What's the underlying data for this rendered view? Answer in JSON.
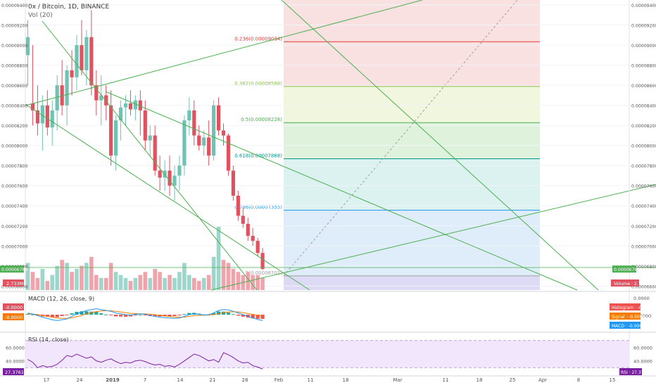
{
  "header": {
    "symbol_line": "0x / Bitcoin, 1D, BINANCE",
    "vol_label": "Vol (20)"
  },
  "colors": {
    "up": "#6fc3b3",
    "down": "#e05260",
    "up_vol": "#9fd6cc",
    "down_vol": "#f0a3aa",
    "trendline": "#4caf50",
    "grid": "#f0f3fa",
    "macd": "#2196f3",
    "signal": "#f57c00",
    "rsi": "#7b1fa2",
    "rsi_band": "#efe3fb",
    "price_tag": "#4caf50",
    "red_tag": "#e05260"
  },
  "chart_data": {
    "type": "candlestick",
    "y_axis_ticks": [
      "0.00009400",
      "0.00009200",
      "0.00009000",
      "0.00008800",
      "0.00008600",
      "0.00008400",
      "0.00008200",
      "0.00008000",
      "0.00007800",
      "0.00007600",
      "0.00007400",
      "0.00007200",
      "0.00007000",
      "0.00006800",
      "0.00006600"
    ],
    "ylim": [
      6.56e-05,
      9.45e-05
    ],
    "x_axis_labels": [
      "17",
      "24",
      "2019",
      "7",
      "14",
      "21",
      "28",
      "Feb",
      "11",
      "18",
      "Mar",
      "11",
      "18",
      "25",
      "Apr",
      "8",
      "15"
    ],
    "candles": [
      {
        "o": 8.9e-05,
        "h": 9.25e-05,
        "l": 8.6e-05,
        "c": 9.08e-05
      },
      {
        "o": 8.42e-05,
        "h": 9e-05,
        "l": 8.2e-05,
        "c": 8.35e-05
      },
      {
        "o": 8.35e-05,
        "h": 8.6e-05,
        "l": 8.1e-05,
        "c": 8.22e-05
      },
      {
        "o": 8.22e-05,
        "h": 8.5e-05,
        "l": 7.95e-05,
        "c": 8.4e-05
      },
      {
        "o": 8.4e-05,
        "h": 8.55e-05,
        "l": 8.1e-05,
        "c": 8.18e-05
      },
      {
        "o": 8.18e-05,
        "h": 8.45e-05,
        "l": 8e-05,
        "c": 8.35e-05
      },
      {
        "o": 8.35e-05,
        "h": 8.7e-05,
        "l": 8.15e-05,
        "c": 8.6e-05
      },
      {
        "o": 8.6e-05,
        "h": 8.85e-05,
        "l": 8.3e-05,
        "c": 8.4e-05
      },
      {
        "o": 8.4e-05,
        "h": 8.8e-05,
        "l": 8.2e-05,
        "c": 8.75e-05
      },
      {
        "o": 8.75e-05,
        "h": 8.95e-05,
        "l": 8.5e-05,
        "c": 8.68e-05
      },
      {
        "o": 8.68e-05,
        "h": 9.1e-05,
        "l": 8.55e-05,
        "c": 9e-05
      },
      {
        "o": 9e-05,
        "h": 9.25e-05,
        "l": 8.7e-05,
        "c": 8.75e-05
      },
      {
        "o": 8.75e-05,
        "h": 9.15e-05,
        "l": 8.6e-05,
        "c": 9.08e-05
      },
      {
        "o": 9.08e-05,
        "h": 9.35e-05,
        "l": 8.5e-05,
        "c": 8.6e-05
      },
      {
        "o": 8.6e-05,
        "h": 8.75e-05,
        "l": 8.3e-05,
        "c": 8.45e-05
      },
      {
        "o": 8.45e-05,
        "h": 8.7e-05,
        "l": 8.2e-05,
        "c": 8.5e-05
      },
      {
        "o": 8.5e-05,
        "h": 8.6e-05,
        "l": 8.25e-05,
        "c": 8.4e-05
      },
      {
        "o": 8.4e-05,
        "h": 8.55e-05,
        "l": 7.8e-05,
        "c": 7.9e-05
      },
      {
        "o": 7.9e-05,
        "h": 8.3e-05,
        "l": 7.75e-05,
        "c": 8.25e-05
      },
      {
        "o": 8.25e-05,
        "h": 8.45e-05,
        "l": 8.05e-05,
        "c": 8.38e-05
      },
      {
        "o": 8.38e-05,
        "h": 8.5e-05,
        "l": 8.2e-05,
        "c": 8.42e-05
      },
      {
        "o": 8.42e-05,
        "h": 8.55e-05,
        "l": 8.3e-05,
        "c": 8.36e-05
      },
      {
        "o": 8.36e-05,
        "h": 8.5e-05,
        "l": 8.25e-05,
        "c": 8.45e-05
      },
      {
        "o": 8.45e-05,
        "h": 8.55e-05,
        "l": 8.1e-05,
        "c": 8.35e-05
      },
      {
        "o": 8.35e-05,
        "h": 8.45e-05,
        "l": 7.95e-05,
        "c": 8.05e-05
      },
      {
        "o": 8.05e-05,
        "h": 8.2e-05,
        "l": 7.9e-05,
        "c": 8.1e-05
      },
      {
        "o": 8.1e-05,
        "h": 8.2e-05,
        "l": 7.7e-05,
        "c": 7.75e-05
      },
      {
        "o": 7.75e-05,
        "h": 7.9e-05,
        "l": 7.55e-05,
        "c": 7.68e-05
      },
      {
        "o": 7.68e-05,
        "h": 7.85e-05,
        "l": 7.55e-05,
        "c": 7.75e-05
      },
      {
        "o": 7.75e-05,
        "h": 7.9e-05,
        "l": 7.5e-05,
        "c": 7.6e-05
      },
      {
        "o": 7.6e-05,
        "h": 7.8e-05,
        "l": 7.45e-05,
        "c": 7.7e-05
      },
      {
        "o": 7.7e-05,
        "h": 7.9e-05,
        "l": 7.55e-05,
        "c": 7.8e-05
      },
      {
        "o": 7.8e-05,
        "h": 8.3e-05,
        "l": 7.7e-05,
        "c": 8.25e-05
      },
      {
        "o": 8.25e-05,
        "h": 8.48e-05,
        "l": 8.1e-05,
        "c": 8.35e-05
      },
      {
        "o": 8.35e-05,
        "h": 8.45e-05,
        "l": 8e-05,
        "c": 8.1e-05
      },
      {
        "o": 8.1e-05,
        "h": 8.2e-05,
        "l": 7.95e-05,
        "c": 8e-05
      },
      {
        "o": 8e-05,
        "h": 8.15e-05,
        "l": 7.9e-05,
        "c": 8.08e-05
      },
      {
        "o": 8.08e-05,
        "h": 8.25e-05,
        "l": 7.8e-05,
        "c": 7.9e-05
      },
      {
        "o": 7.9e-05,
        "h": 8.45e-05,
        "l": 7.85e-05,
        "c": 8.4e-05
      },
      {
        "o": 8.4e-05,
        "h": 8.48e-05,
        "l": 8.1e-05,
        "c": 8.15e-05
      },
      {
        "o": 8.15e-05,
        "h": 8.22e-05,
        "l": 8e-05,
        "c": 8.1e-05
      },
      {
        "o": 8.1e-05,
        "h": 8.12e-05,
        "l": 7.7e-05,
        "c": 7.75e-05
      },
      {
        "o": 7.75e-05,
        "h": 7.8e-05,
        "l": 7.45e-05,
        "c": 7.5e-05
      },
      {
        "o": 7.5e-05,
        "h": 7.55e-05,
        "l": 7.25e-05,
        "c": 7.3e-05
      },
      {
        "o": 7.3e-05,
        "h": 7.38e-05,
        "l": 7.18e-05,
        "c": 7.22e-05
      },
      {
        "o": 7.22e-05,
        "h": 7.28e-05,
        "l": 7.05e-05,
        "c": 7.1e-05
      },
      {
        "o": 7.1e-05,
        "h": 7.18e-05,
        "l": 7e-05,
        "c": 7.05e-05
      },
      {
        "o": 7.05e-05,
        "h": 7.08e-05,
        "l": 6.9e-05,
        "c": 6.93e-05
      },
      {
        "o": 6.93e-05,
        "h": 6.98e-05,
        "l": 6.76e-05,
        "c": 6.77e-05
      }
    ],
    "volume": [
      {
        "v": 0.9,
        "up": true
      },
      {
        "v": 0.6,
        "up": false
      },
      {
        "v": 0.4,
        "up": false
      },
      {
        "v": 0.7,
        "up": true
      },
      {
        "v": 0.3,
        "up": false
      },
      {
        "v": 0.5,
        "up": true
      },
      {
        "v": 0.8,
        "up": true
      },
      {
        "v": 1.0,
        "up": false
      },
      {
        "v": 0.9,
        "up": true
      },
      {
        "v": 0.6,
        "up": false
      },
      {
        "v": 0.7,
        "up": true
      },
      {
        "v": 0.8,
        "up": false
      },
      {
        "v": 0.9,
        "up": true
      },
      {
        "v": 1.1,
        "up": false
      },
      {
        "v": 0.5,
        "up": false
      },
      {
        "v": 0.4,
        "up": true
      },
      {
        "v": 0.4,
        "up": false
      },
      {
        "v": 0.9,
        "up": false
      },
      {
        "v": 0.6,
        "up": true
      },
      {
        "v": 0.5,
        "up": true
      },
      {
        "v": 0.4,
        "up": true
      },
      {
        "v": 0.3,
        "up": false
      },
      {
        "v": 0.4,
        "up": true
      },
      {
        "v": 0.5,
        "up": false
      },
      {
        "v": 0.6,
        "up": false
      },
      {
        "v": 0.4,
        "up": true
      },
      {
        "v": 0.7,
        "up": false
      },
      {
        "v": 0.6,
        "up": false
      },
      {
        "v": 0.4,
        "up": true
      },
      {
        "v": 0.5,
        "up": false
      },
      {
        "v": 0.4,
        "up": true
      },
      {
        "v": 0.6,
        "up": true
      },
      {
        "v": 0.9,
        "up": true
      },
      {
        "v": 0.5,
        "up": true
      },
      {
        "v": 0.4,
        "up": false
      },
      {
        "v": 0.3,
        "up": false
      },
      {
        "v": 0.4,
        "up": true
      },
      {
        "v": 0.5,
        "up": false
      },
      {
        "v": 1.1,
        "up": true
      },
      {
        "v": 2.1,
        "up": true
      },
      {
        "v": 1.0,
        "up": false
      },
      {
        "v": 0.9,
        "up": false
      },
      {
        "v": 0.7,
        "up": false
      },
      {
        "v": 0.6,
        "up": false
      },
      {
        "v": 0.5,
        "up": false
      },
      {
        "v": 0.6,
        "up": false
      },
      {
        "v": 0.5,
        "up": false
      },
      {
        "v": 0.5,
        "up": false
      },
      {
        "v": 0.4,
        "up": false
      }
    ],
    "fib_levels": [
      {
        "ratio": "0.236",
        "price": 9.034e-05,
        "label": "0.236(0.00009034)",
        "line": "#e53935",
        "fill": "#f7d9da"
      },
      {
        "ratio": "0.382",
        "price": 8.588e-05,
        "label": "0.382(0.00008588)",
        "line": "#8bc34a",
        "fill": "#eef5d6"
      },
      {
        "ratio": "0.5",
        "price": 8.228e-05,
        "label": "0.5(0.00008228)",
        "line": "#4caf50",
        "fill": "#d7f0d3"
      },
      {
        "ratio": "0.618",
        "price": 7.868e-05,
        "label": "0.618(0.00007868)",
        "line": "#009688",
        "fill": "#d3efec"
      },
      {
        "ratio": "0.786",
        "price": 7.355e-05,
        "label": "0.786(0.00007355)",
        "line": "#2196f3",
        "fill": "#d6e8f7"
      },
      {
        "ratio": "1",
        "price": 6.701e-05,
        "label": "1(0.00006701)",
        "line": "#9e9e9e",
        "fill": "#e6e6e6"
      }
    ],
    "fib_top_fill": "#f7d9da",
    "fib_below_fill": "#d9d6f5",
    "current_price_label": "0.00006769",
    "current_price": 6.769e-05,
    "volume_value": "2.733M",
    "macd": {
      "label": "MACD (12, 26, close, 9)",
      "ticks": [
        "0.0000",
        "-0.0000",
        "-0.0000"
      ],
      "legend": [
        {
          "name": "Histogram",
          "value": "-0.0000"
        },
        {
          "name": "Signal",
          "value": "-0.0000"
        },
        {
          "name": "MACD",
          "value": "-0.0000"
        }
      ],
      "left_tags": [
        "-0.0000",
        "-0.0000"
      ],
      "macd_line": [
        0.1,
        0.05,
        -0.05,
        -0.15,
        -0.22,
        -0.3,
        -0.35,
        -0.3,
        -0.25,
        -0.1,
        0.05,
        0.15,
        0.25,
        0.3,
        0.35,
        0.3,
        0.25,
        0.2,
        0.1,
        0.05,
        0.0,
        -0.02,
        0.02,
        0.05,
        0.03,
        -0.05,
        -0.1,
        -0.15,
        -0.18,
        -0.2,
        -0.22,
        -0.2,
        -0.1,
        0.0,
        0.05,
        0.02,
        -0.02,
        0.0,
        0.1,
        0.25,
        0.3,
        0.28,
        0.2,
        0.1,
        0.0,
        -0.1,
        -0.2,
        -0.28,
        -0.35
      ],
      "signal_line": [
        0.05,
        0.04,
        0.01,
        -0.05,
        -0.1,
        -0.15,
        -0.2,
        -0.22,
        -0.22,
        -0.18,
        -0.12,
        -0.05,
        0.05,
        0.12,
        0.18,
        0.22,
        0.24,
        0.23,
        0.2,
        0.16,
        0.12,
        0.08,
        0.06,
        0.05,
        0.05,
        0.03,
        0.0,
        -0.04,
        -0.08,
        -0.11,
        -0.14,
        -0.15,
        -0.14,
        -0.1,
        -0.06,
        -0.04,
        -0.03,
        -0.02,
        0.0,
        0.06,
        0.12,
        0.16,
        0.17,
        0.16,
        0.12,
        0.07,
        0.02,
        -0.04,
        -0.1
      ],
      "histogram": [
        0.05,
        0.01,
        -0.06,
        -0.1,
        -0.12,
        -0.15,
        -0.15,
        -0.08,
        -0.03,
        0.08,
        0.17,
        0.2,
        0.2,
        0.18,
        0.17,
        0.08,
        0.01,
        -0.03,
        -0.1,
        -0.11,
        -0.12,
        -0.1,
        -0.04,
        0.0,
        -0.02,
        -0.08,
        -0.1,
        -0.11,
        -0.1,
        -0.09,
        -0.08,
        -0.05,
        0.04,
        0.1,
        0.11,
        0.06,
        0.01,
        0.02,
        0.1,
        0.19,
        0.18,
        0.12,
        0.03,
        -0.06,
        -0.12,
        -0.17,
        -0.22,
        -0.24,
        -0.25
      ]
    },
    "rsi": {
      "label": "RSI (14, close)",
      "ticks": [
        "60.0000",
        "40.0000"
      ],
      "value": "27.3761",
      "tag_name": "RSI",
      "band": [
        30,
        70
      ],
      "ylim": [
        20,
        80
      ],
      "values": [
        42,
        38,
        30,
        33,
        31,
        32,
        35,
        41,
        48,
        46,
        50,
        47,
        44,
        46,
        40,
        38,
        41,
        43,
        39,
        36,
        38,
        37,
        40,
        41,
        39,
        36,
        34,
        35,
        32,
        33,
        31,
        35,
        40,
        45,
        50,
        48,
        44,
        40,
        42,
        38,
        52,
        49,
        45,
        40,
        37,
        38,
        33,
        31,
        28
      ]
    }
  }
}
